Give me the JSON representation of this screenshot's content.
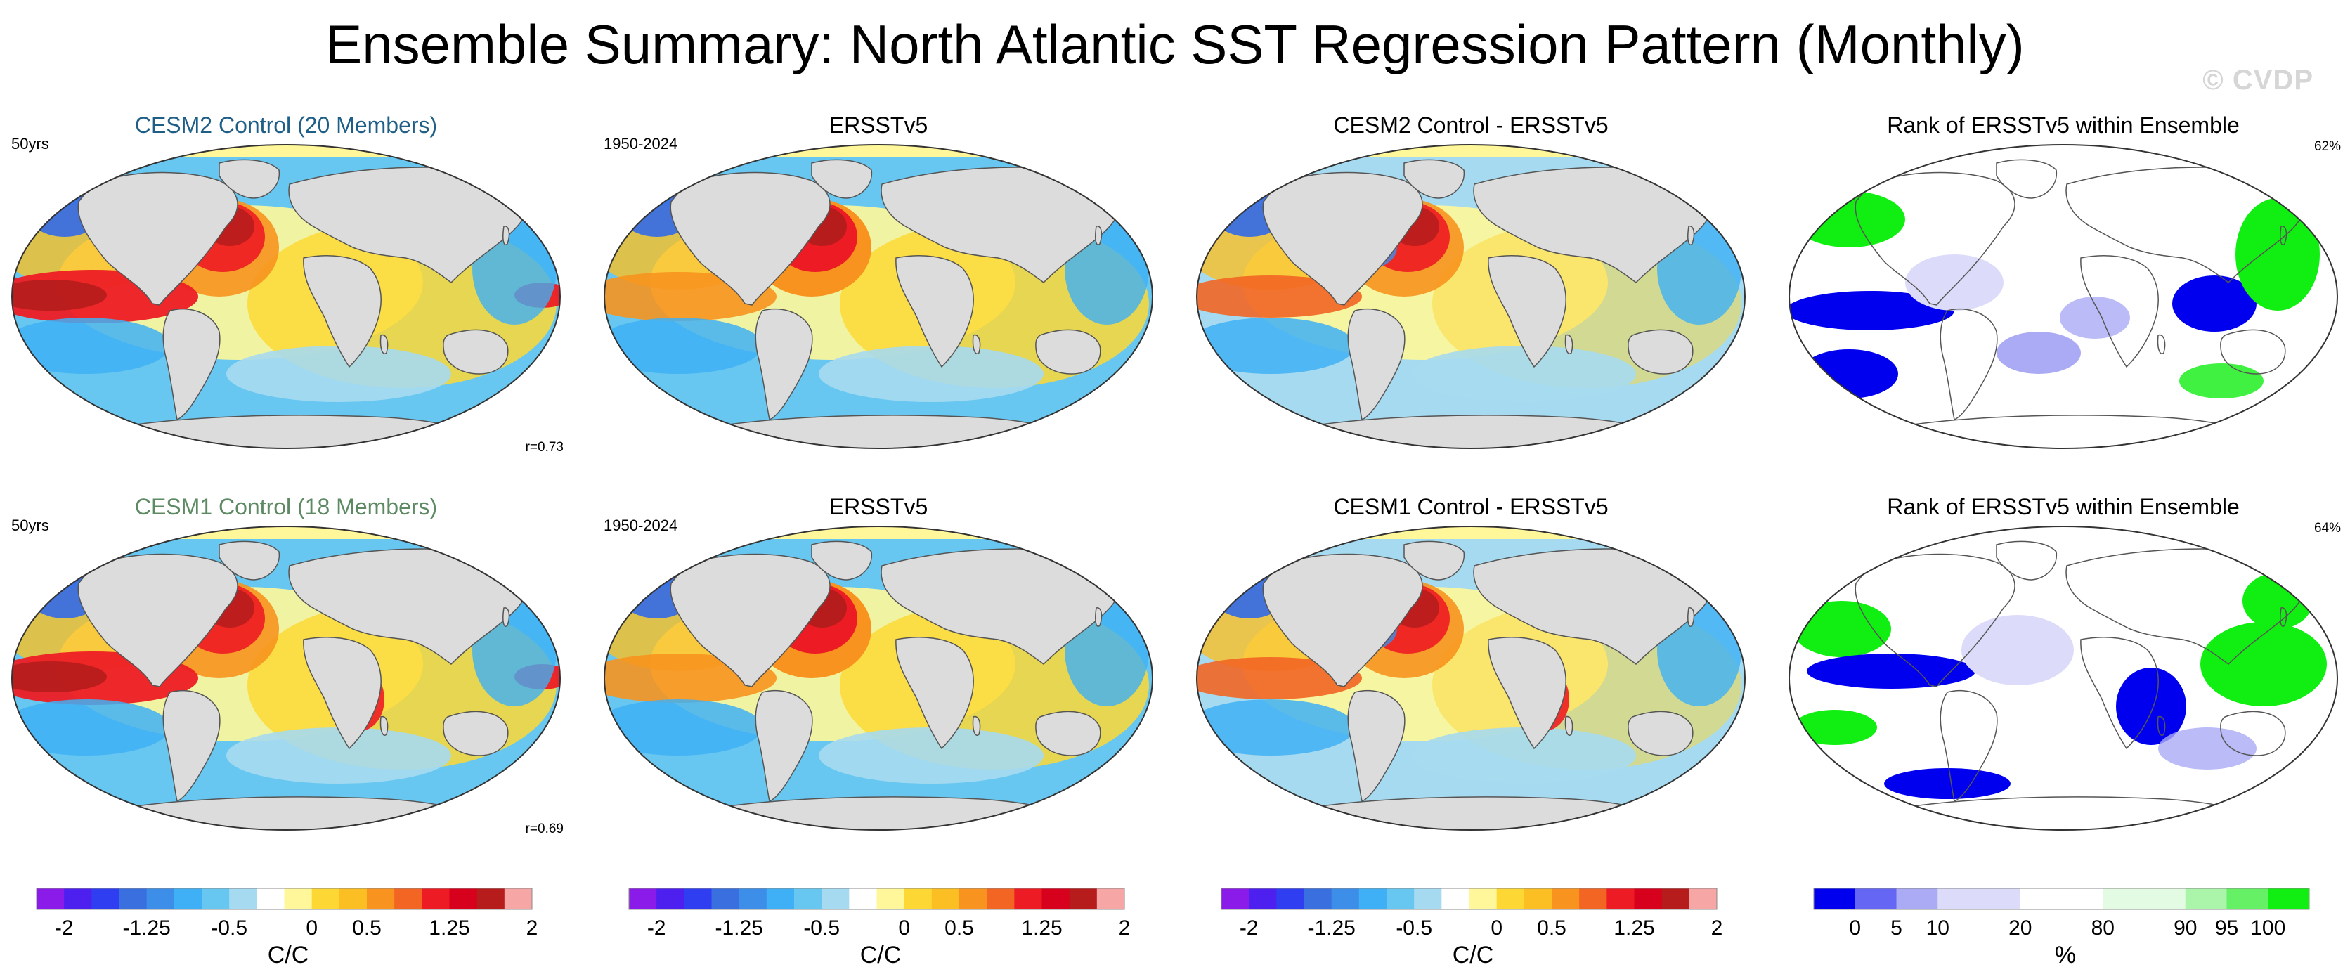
{
  "title": "Ensemble Summary: North Atlantic SST Regression Pattern (Monthly)",
  "watermark": "© CVDP",
  "panels": [
    {
      "title": "CESM2 Control (20 Members)",
      "left_note": "50yrs",
      "right_note": "",
      "bottom_note": "r=0.73",
      "kind": "sst-model"
    },
    {
      "title": "ERSSTv5",
      "left_note": "1950-2024",
      "right_note": "",
      "bottom_note": "",
      "kind": "sst-obs"
    },
    {
      "title": "CESM2 Control - ERSSTv5",
      "left_note": "",
      "right_note": "",
      "bottom_note": "",
      "kind": "sst-diff"
    },
    {
      "title": "Rank of ERSSTv5 within Ensemble",
      "left_note": "",
      "right_note": "62%",
      "bottom_note": "",
      "kind": "rank"
    },
    {
      "title": "CESM1 Control (18 Members)",
      "left_note": "50yrs",
      "right_note": "",
      "bottom_note": "r=0.69",
      "kind": "sst-model"
    },
    {
      "title": "ERSSTv5",
      "left_note": "1950-2024",
      "right_note": "",
      "bottom_note": "",
      "kind": "sst-obs"
    },
    {
      "title": "CESM1 Control - ERSSTv5",
      "left_note": "",
      "right_note": "",
      "bottom_note": "",
      "kind": "sst-diff"
    },
    {
      "title": "Rank of ERSSTv5 within Ensemble",
      "left_note": "",
      "right_note": "64%",
      "bottom_note": "",
      "kind": "rank"
    }
  ],
  "colorbars": {
    "sst": {
      "unit": "C/C",
      "tick_labels": [
        "-2",
        "-1.25",
        "-0.5",
        "0",
        "0.5",
        "1.25",
        "2"
      ],
      "tick_positions": [
        1,
        4,
        7,
        10,
        12,
        15,
        18
      ],
      "colors": [
        "#8b1be8",
        "#4e20f0",
        "#2f3ef0",
        "#3a6fe0",
        "#3d8ee8",
        "#3fb0f5",
        "#67c7f0",
        "#a6daf0",
        "#ffffff",
        "#fff799",
        "#fdd835",
        "#fbbf24",
        "#f7931e",
        "#f26522",
        "#ed1c24",
        "#d7001d",
        "#b71c1c",
        "#f7a6a6"
      ]
    },
    "rank": {
      "unit": "%",
      "tick_labels": [
        "0",
        "5",
        "10",
        "20",
        "80",
        "90",
        "95",
        "100"
      ],
      "tick_positions": [
        1,
        2,
        3,
        5,
        7,
        9,
        10,
        11
      ],
      "colors": [
        "#0000ee",
        "#6666f5",
        "#aaaaf5",
        "#dcdcfa",
        "#dcdcfa",
        "#ffffff",
        "#ffffff",
        "#e3fbe3",
        "#e3fbe3",
        "#aaf5aa",
        "#66f066",
        "#11ee11"
      ]
    }
  }
}
